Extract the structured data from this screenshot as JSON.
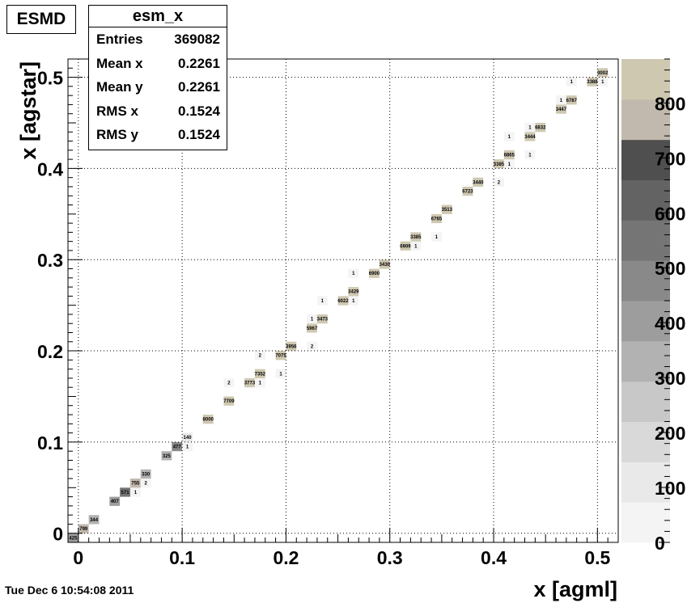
{
  "canvas": {
    "pad_label": "ESMD",
    "timestamp": "Tue Dec  6 10:54:08 2011"
  },
  "stats": {
    "title": "esm_x",
    "rows": [
      {
        "label": "Entries",
        "value": "369082"
      },
      {
        "label": "Mean x",
        "value": "0.2261"
      },
      {
        "label": "Mean y",
        "value": "0.2261"
      },
      {
        "label": "RMS x",
        "value": "0.1524"
      },
      {
        "label": "RMS y",
        "value": "0.1524"
      }
    ]
  },
  "colors": {
    "palette": [
      "#f4f4f4",
      "#e9e9e9",
      "#d9d9d9",
      "#c8c8c8",
      "#b2b2b2",
      "#9d9d9d",
      "#898989",
      "#757575",
      "#636363",
      "#4f4f4f",
      "#c2b9ae",
      "#cfc8b1"
    ],
    "grid": "#000000",
    "text": "#000000"
  },
  "chart_data": {
    "type": "heatmap",
    "title": "",
    "xlabel": "x [agml]",
    "ylabel": "x [agstar]",
    "xlim": [
      -0.01,
      0.52
    ],
    "ylim": [
      -0.01,
      0.52
    ],
    "xticks": [
      0,
      0.1,
      0.2,
      0.3,
      0.4,
      0.5
    ],
    "xtick_labels": [
      "0",
      "0.1",
      "0.2",
      "0.3",
      "0.4",
      "0.5"
    ],
    "yticks": [
      0,
      0.1,
      0.2,
      0.3,
      0.4,
      0.5
    ],
    "ytick_labels": [
      "0",
      "0.1",
      "0.2",
      "0.3",
      "0.4",
      "0.5"
    ],
    "grid": true,
    "colorbar": {
      "min": 0,
      "max": 880,
      "ticks": [
        0,
        100,
        200,
        300,
        400,
        500,
        600,
        700,
        800
      ],
      "tick_labels": [
        "0",
        "100",
        "200",
        "300",
        "400",
        "500",
        "600",
        "700",
        "800"
      ]
    },
    "cell_size": 0.01,
    "cells": [
      {
        "x": -0.01,
        "y": -0.01,
        "v": 425
      },
      {
        "x": 0.0,
        "y": 0.0,
        "v": 799
      },
      {
        "x": 0.01,
        "y": 0.01,
        "v": 344
      },
      {
        "x": 0.03,
        "y": 0.03,
        "v": 407
      },
      {
        "x": 0.04,
        "y": 0.04,
        "v": 571
      },
      {
        "x": 0.05,
        "y": 0.04,
        "v": 1
      },
      {
        "x": 0.05,
        "y": 0.05,
        "v": 755
      },
      {
        "x": 0.06,
        "y": 0.05,
        "v": 2
      },
      {
        "x": 0.06,
        "y": 0.06,
        "v": 330
      },
      {
        "x": 0.08,
        "y": 0.08,
        "v": 325
      },
      {
        "x": 0.09,
        "y": 0.09,
        "v": 477
      },
      {
        "x": 0.1,
        "y": 0.09,
        "v": 1
      },
      {
        "x": 0.1,
        "y": 0.1,
        "v": 140
      },
      {
        "x": 0.12,
        "y": 0.12,
        "v": 8000
      },
      {
        "x": 0.14,
        "y": 0.14,
        "v": 7709
      },
      {
        "x": 0.14,
        "y": 0.16,
        "v": 2
      },
      {
        "x": 0.16,
        "y": 0.16,
        "v": 3773
      },
      {
        "x": 0.17,
        "y": 0.16,
        "v": 1
      },
      {
        "x": 0.17,
        "y": 0.17,
        "v": 7352
      },
      {
        "x": 0.19,
        "y": 0.17,
        "v": 1
      },
      {
        "x": 0.17,
        "y": 0.19,
        "v": 2
      },
      {
        "x": 0.19,
        "y": 0.19,
        "v": 7075
      },
      {
        "x": 0.2,
        "y": 0.2,
        "v": 3956
      },
      {
        "x": 0.22,
        "y": 0.2,
        "v": 2
      },
      {
        "x": 0.22,
        "y": 0.22,
        "v": 5967
      },
      {
        "x": 0.22,
        "y": 0.23,
        "v": 1
      },
      {
        "x": 0.23,
        "y": 0.23,
        "v": 3473
      },
      {
        "x": 0.23,
        "y": 0.25,
        "v": 1
      },
      {
        "x": 0.25,
        "y": 0.25,
        "v": 6022
      },
      {
        "x": 0.26,
        "y": 0.25,
        "v": 1
      },
      {
        "x": 0.26,
        "y": 0.26,
        "v": 3429
      },
      {
        "x": 0.26,
        "y": 0.28,
        "v": 1
      },
      {
        "x": 0.28,
        "y": 0.28,
        "v": 6900
      },
      {
        "x": 0.29,
        "y": 0.29,
        "v": 3430
      },
      {
        "x": 0.31,
        "y": 0.31,
        "v": 6909
      },
      {
        "x": 0.32,
        "y": 0.31,
        "v": 1
      },
      {
        "x": 0.32,
        "y": 0.32,
        "v": 3385
      },
      {
        "x": 0.34,
        "y": 0.32,
        "v": 1
      },
      {
        "x": 0.34,
        "y": 0.34,
        "v": 6765
      },
      {
        "x": 0.35,
        "y": 0.35,
        "v": 3513
      },
      {
        "x": 0.37,
        "y": 0.37,
        "v": 6723
      },
      {
        "x": 0.38,
        "y": 0.38,
        "v": 3440
      },
      {
        "x": 0.4,
        "y": 0.38,
        "v": 2
      },
      {
        "x": 0.4,
        "y": 0.4,
        "v": 3385
      },
      {
        "x": 0.41,
        "y": 0.4,
        "v": 1
      },
      {
        "x": 0.41,
        "y": 0.41,
        "v": 6865
      },
      {
        "x": 0.41,
        "y": 0.43,
        "v": 1
      },
      {
        "x": 0.43,
        "y": 0.41,
        "v": 1
      },
      {
        "x": 0.43,
        "y": 0.43,
        "v": 3444
      },
      {
        "x": 0.43,
        "y": 0.44,
        "v": 1
      },
      {
        "x": 0.44,
        "y": 0.44,
        "v": 6832
      },
      {
        "x": 0.46,
        "y": 0.46,
        "v": 3447
      },
      {
        "x": 0.46,
        "y": 0.47,
        "v": 1
      },
      {
        "x": 0.47,
        "y": 0.47,
        "v": 6787
      },
      {
        "x": 0.47,
        "y": 0.49,
        "v": 1
      },
      {
        "x": 0.49,
        "y": 0.49,
        "v": 3388
      },
      {
        "x": 0.5,
        "y": 0.49,
        "v": 1
      },
      {
        "x": 0.5,
        "y": 0.5,
        "v": 3002
      }
    ]
  }
}
